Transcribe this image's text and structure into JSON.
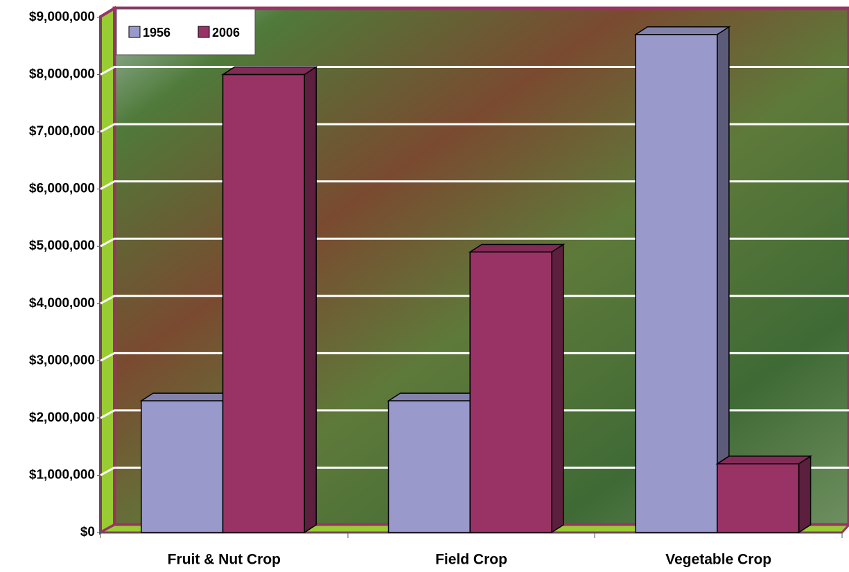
{
  "chart_data": {
    "type": "bar3d",
    "categories": [
      "Fruit & Nut Crop",
      "Field Crop",
      "Vegetable Crop"
    ],
    "series": [
      {
        "name": "1956",
        "color": "#9999cc",
        "values": [
          2300000,
          2300000,
          8700000
        ]
      },
      {
        "name": "2006",
        "color": "#993366",
        "values": [
          8000000,
          4900000,
          1200000
        ]
      }
    ],
    "ylim": [
      0,
      9000000
    ],
    "yticks": [
      {
        "value": 0,
        "label": "$0"
      },
      {
        "value": 1000000,
        "label": "$1,000,000"
      },
      {
        "value": 2000000,
        "label": "$2,000,000"
      },
      {
        "value": 3000000,
        "label": "$3,000,000"
      },
      {
        "value": 4000000,
        "label": "$4,000,000"
      },
      {
        "value": 5000000,
        "label": "$5,000,000"
      },
      {
        "value": 6000000,
        "label": "$6,000,000"
      },
      {
        "value": 7000000,
        "label": "$7,000,000"
      },
      {
        "value": 8000000,
        "label": "$8,000,000"
      },
      {
        "value": 9000000,
        "label": "$9,000,000"
      }
    ],
    "grid": true,
    "legend": "top-left"
  }
}
